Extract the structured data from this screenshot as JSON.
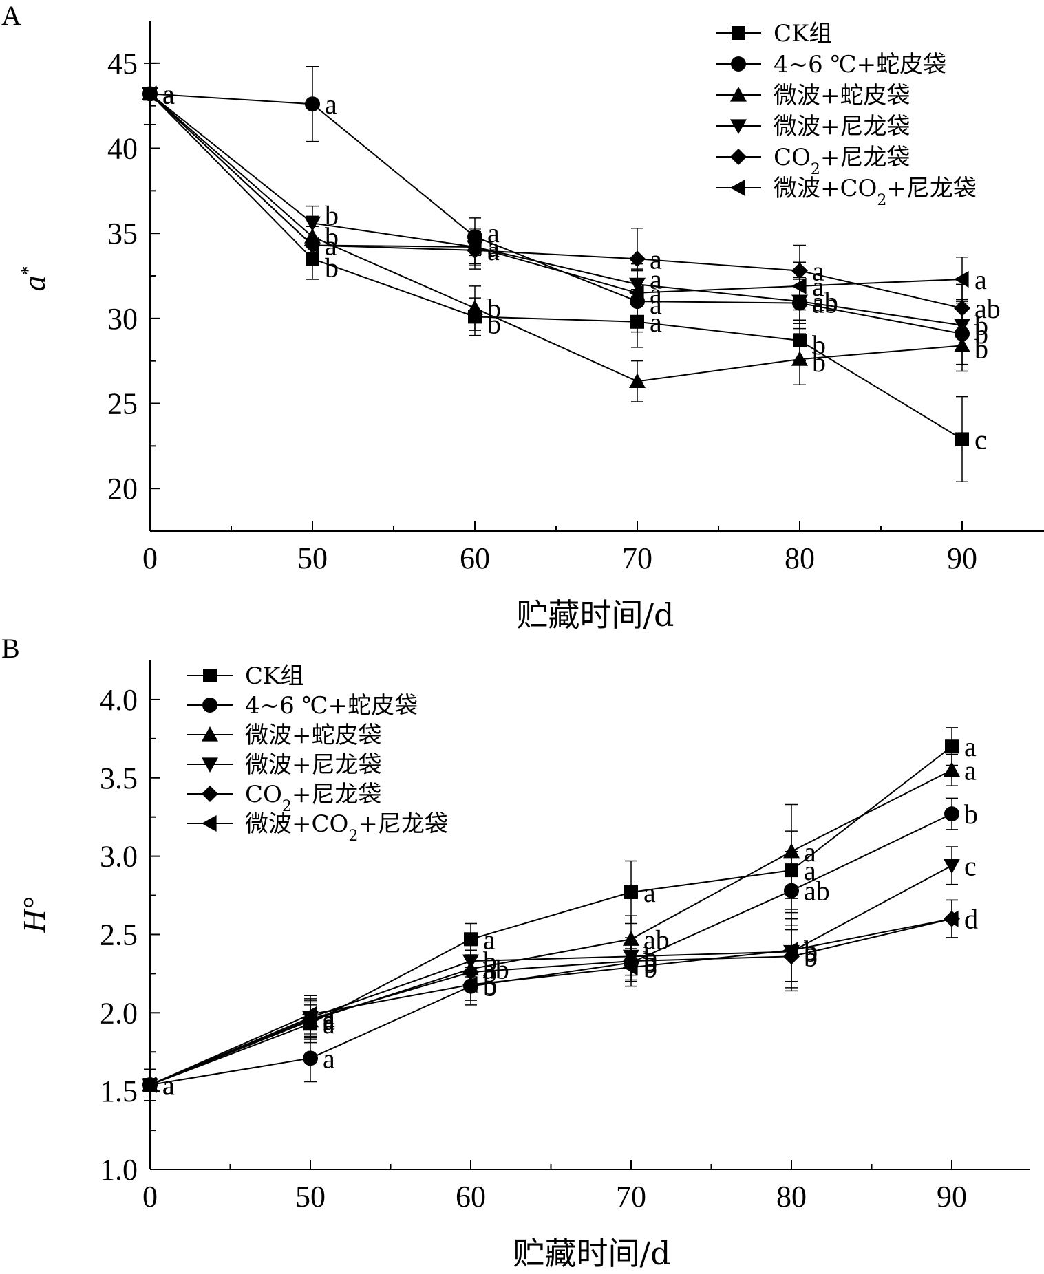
{
  "figure": {
    "panels": [
      {
        "letter": "A"
      },
      {
        "letter": "B"
      }
    ]
  },
  "chart_data": [
    {
      "type": "line",
      "panel": "A",
      "xlabel": "贮藏时间/d",
      "ylabel": "a",
      "ylabel_superscript": "*",
      "x_categories": [
        "0",
        "50",
        "60",
        "70",
        "80",
        "90"
      ],
      "ylim": [
        17.5,
        47.5
      ],
      "yticks": [
        "20",
        "25",
        "30",
        "35",
        "40",
        "45"
      ],
      "legend_position": "top-right",
      "series": [
        {
          "name": "CK组",
          "marker": "square",
          "values": [
            43.2,
            33.5,
            30.1,
            29.8,
            28.7,
            22.9
          ],
          "errors": [
            1.8,
            1.2,
            1.1,
            1.5,
            1.2,
            2.5
          ],
          "labels": [
            "a",
            "b",
            "b",
            "a",
            "b",
            "c"
          ]
        },
        {
          "name": "4~6 ℃+蛇皮袋",
          "marker": "circle",
          "values": [
            43.2,
            42.6,
            34.8,
            31.0,
            30.9,
            29.1
          ],
          "errors": [
            1.8,
            2.2,
            1.1,
            1.8,
            1.5,
            1.8
          ],
          "labels": [
            "a",
            "a",
            "a",
            "a",
            "ab",
            "b"
          ]
        },
        {
          "name": "微波+蛇皮袋",
          "marker": "triangle-up",
          "values": [
            43.2,
            34.8,
            30.6,
            26.3,
            27.6,
            28.4
          ],
          "errors": [
            1.8,
            1.2,
            1.3,
            1.2,
            1.5,
            1.5
          ],
          "labels": [
            "a",
            "b",
            "b",
            "",
            "b",
            "b"
          ]
        },
        {
          "name": "微波+尼龙袋",
          "marker": "triangle-down",
          "values": [
            43.2,
            35.6,
            34.2,
            32.0,
            31.0,
            29.6
          ],
          "errors": [
            1.8,
            1.0,
            1.0,
            1.2,
            1.3,
            1.5
          ],
          "labels": [
            "a",
            "b",
            "a",
            "a",
            "ab",
            "b"
          ]
        },
        {
          "name": "CO2+尼龙袋",
          "marker": "diamond",
          "values": [
            43.2,
            34.3,
            34.0,
            33.5,
            32.8,
            30.6
          ],
          "errors": [
            1.8,
            1.1,
            1.1,
            1.8,
            1.5,
            1.4
          ],
          "labels": [
            "a",
            "a",
            "a",
            "a",
            "a",
            "ab"
          ]
        },
        {
          "name": "微波+CO2+尼龙袋",
          "marker": "triangle-left",
          "values": [
            43.2,
            34.3,
            34.2,
            31.5,
            31.9,
            32.3
          ],
          "errors": [
            1.8,
            1.1,
            1.1,
            1.4,
            1.4,
            1.3
          ],
          "labels": [
            "a",
            "a",
            "a",
            "a",
            "a",
            "a"
          ]
        }
      ]
    },
    {
      "type": "line",
      "panel": "B",
      "xlabel": "贮藏时间/d",
      "ylabel": "H°",
      "x_categories": [
        "0",
        "50",
        "60",
        "70",
        "80",
        "90"
      ],
      "ylim": [
        1.0,
        4.25
      ],
      "yticks": [
        "1.0",
        "1.5",
        "2.0",
        "2.5",
        "3.0",
        "3.5",
        "4.0"
      ],
      "legend_position": "top-left",
      "series": [
        {
          "name": "CK组",
          "marker": "square",
          "values": [
            1.54,
            1.93,
            2.47,
            2.77,
            2.91,
            3.7
          ],
          "errors": [
            0.1,
            0.12,
            0.1,
            0.2,
            0.25,
            0.12
          ],
          "labels": [
            "a",
            "a",
            "a",
            "a",
            "a",
            "a"
          ]
        },
        {
          "name": "4~6 ℃+蛇皮袋",
          "marker": "circle",
          "values": [
            1.54,
            1.71,
            2.17,
            2.32,
            2.78,
            3.27
          ],
          "errors": [
            0.1,
            0.15,
            0.12,
            0.12,
            0.25,
            0.1
          ],
          "labels": [
            "a",
            "a",
            "b",
            "b",
            "ab",
            "b"
          ]
        },
        {
          "name": "微波+蛇皮袋",
          "marker": "triangle-up",
          "values": [
            1.54,
            1.95,
            2.28,
            2.47,
            3.03,
            3.55
          ],
          "errors": [
            0.1,
            0.12,
            0.12,
            0.15,
            0.3,
            0.1
          ],
          "labels": [
            "a",
            "a",
            "ab",
            "ab",
            "a",
            "a"
          ]
        },
        {
          "name": "微波+尼龙袋",
          "marker": "triangle-down",
          "values": [
            1.54,
            1.97,
            2.33,
            2.36,
            2.39,
            2.94
          ],
          "errors": [
            0.1,
            0.12,
            0.1,
            0.12,
            0.25,
            0.12
          ],
          "labels": [
            "a",
            "a",
            "b",
            "b",
            "b",
            "c"
          ]
        },
        {
          "name": "CO2+尼龙袋",
          "marker": "diamond",
          "values": [
            1.54,
            1.96,
            2.26,
            2.33,
            2.36,
            2.6
          ],
          "errors": [
            0.1,
            0.12,
            0.1,
            0.12,
            0.2,
            0.12
          ],
          "labels": [
            "a",
            "a",
            "b",
            "b",
            "b",
            "d"
          ]
        },
        {
          "name": "微波+CO2+尼龙袋",
          "marker": "triangle-left",
          "values": [
            1.54,
            1.99,
            2.18,
            2.29,
            2.4,
            2.6
          ],
          "errors": [
            0.1,
            0.12,
            0.1,
            0.12,
            0.2,
            0.12
          ],
          "labels": [
            "a",
            "a",
            "b",
            "b",
            "b",
            "d"
          ]
        }
      ]
    }
  ]
}
